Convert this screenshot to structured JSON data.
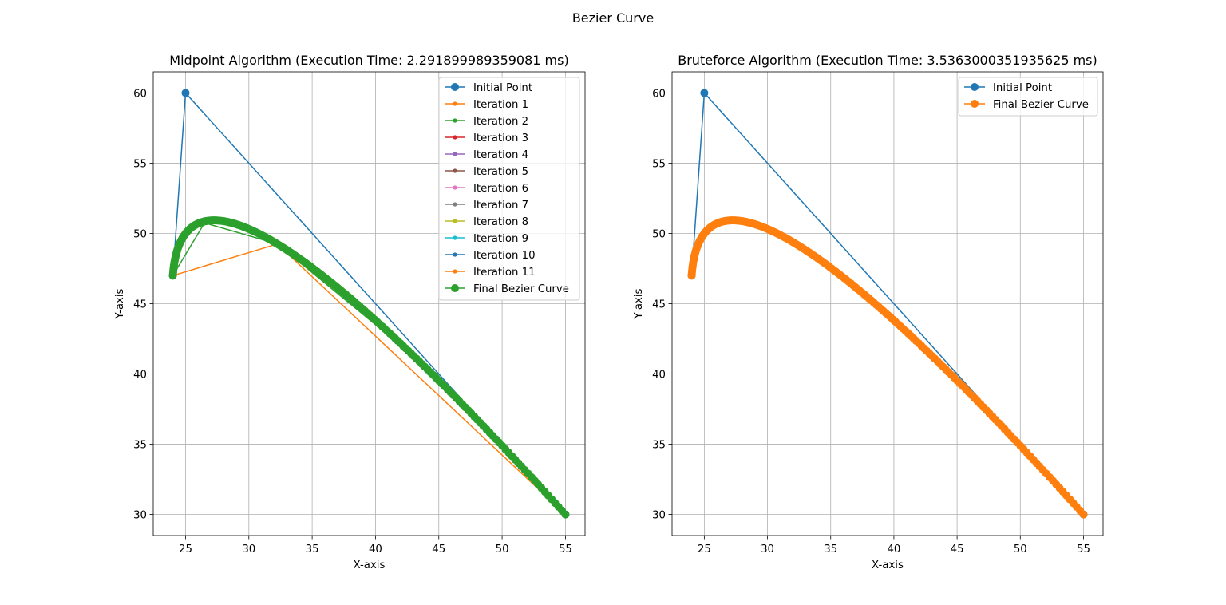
{
  "figure": {
    "suptitle": "Bezier Curve"
  },
  "chart_data": [
    {
      "type": "line",
      "title": "Midpoint Algorithm (Execution Time: 2.291899989359081 ms)",
      "xlabel": "X-axis",
      "ylabel": "Y-axis",
      "xlim": [
        22.45,
        56.55
      ],
      "ylim": [
        28.5,
        61.5
      ],
      "xticks": [
        25,
        30,
        35,
        40,
        45,
        50,
        55
      ],
      "yticks": [
        30,
        35,
        40,
        45,
        50,
        55,
        60
      ],
      "grid": true,
      "legend_position": "upper right",
      "control_points": {
        "x": [
          24,
          25,
          55
        ],
        "y": [
          47,
          60,
          30
        ]
      },
      "series": [
        {
          "name": "Initial Point",
          "color": "#1f77b4",
          "marker": "large",
          "points": [
            [
              24,
              47
            ],
            [
              25,
              60
            ],
            [
              55,
              30
            ]
          ]
        },
        {
          "name": "Iteration 1",
          "color": "#ff7f0e",
          "marker": "small",
          "points": [
            [
              24,
              47
            ],
            [
              32.25,
              49.25
            ],
            [
              55,
              30
            ]
          ]
        },
        {
          "name": "Iteration 2",
          "color": "#2ca02c",
          "marker": "small",
          "points": [
            [
              24,
              47
            ],
            [
              26.5,
              50.75
            ],
            [
              32.25,
              49.25
            ],
            [
              42.88,
              41.38
            ],
            [
              55,
              30
            ]
          ]
        },
        {
          "name": "Iteration 3",
          "color": "#d62728",
          "marker": "small",
          "points": []
        },
        {
          "name": "Iteration 4",
          "color": "#9467bd",
          "marker": "small",
          "points": []
        },
        {
          "name": "Iteration 5",
          "color": "#8c564b",
          "marker": "small",
          "points": []
        },
        {
          "name": "Iteration 6",
          "color": "#e377c2",
          "marker": "small",
          "points": []
        },
        {
          "name": "Iteration 7",
          "color": "#7f7f7f",
          "marker": "small",
          "points": []
        },
        {
          "name": "Iteration 8",
          "color": "#bcbd22",
          "marker": "small",
          "points": []
        },
        {
          "name": "Iteration 9",
          "color": "#17becf",
          "marker": "small",
          "points": []
        },
        {
          "name": "Iteration 10",
          "color": "#1f77b4",
          "marker": "small",
          "points": []
        },
        {
          "name": "Iteration 11",
          "color": "#ff7f0e",
          "marker": "small",
          "points": []
        },
        {
          "name": "Final Bezier Curve",
          "color": "#2ca02c",
          "marker": "large",
          "curve": "quadratic_bezier",
          "points": []
        }
      ]
    },
    {
      "type": "line",
      "title": "Bruteforce Algorithm (Execution Time: 3.5363000351935625 ms)",
      "xlabel": "X-axis",
      "ylabel": "Y-axis",
      "xlim": [
        22.45,
        56.55
      ],
      "ylim": [
        28.5,
        61.5
      ],
      "xticks": [
        25,
        30,
        35,
        40,
        45,
        50,
        55
      ],
      "yticks": [
        30,
        35,
        40,
        45,
        50,
        55,
        60
      ],
      "grid": true,
      "legend_position": "upper right",
      "control_points": {
        "x": [
          24,
          25,
          55
        ],
        "y": [
          47,
          60,
          30
        ]
      },
      "series": [
        {
          "name": "Initial Point",
          "color": "#1f77b4",
          "marker": "large",
          "points": [
            [
              24,
              47
            ],
            [
              25,
              60
            ],
            [
              55,
              30
            ]
          ]
        },
        {
          "name": "Final Bezier Curve",
          "color": "#ff7f0e",
          "marker": "large",
          "curve": "quadratic_bezier",
          "points": []
        }
      ]
    }
  ]
}
